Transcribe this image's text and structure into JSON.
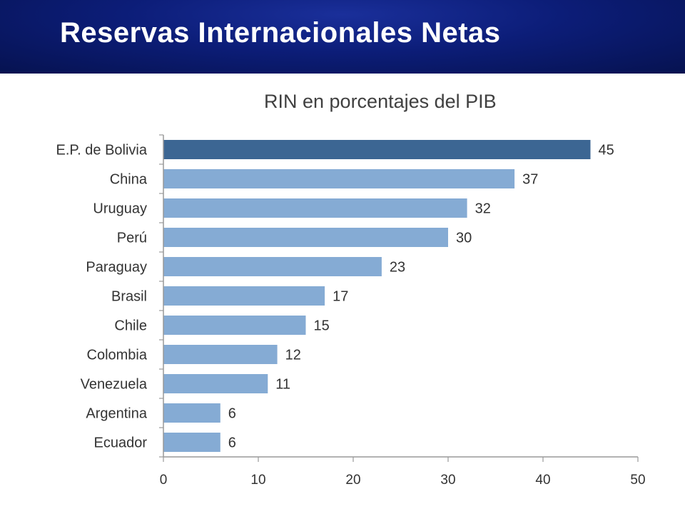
{
  "header": {
    "title": "Reservas Internacionales Netas"
  },
  "chart_data": {
    "type": "bar",
    "orientation": "horizontal",
    "title": "RIN en porcentajes del PIB",
    "categories": [
      "E.P. de Bolivia",
      "China",
      "Uruguay",
      "Perú",
      "Paraguay",
      "Brasil",
      "Chile",
      "Colombia",
      "Venezuela",
      "Argentina",
      "Ecuador"
    ],
    "values": [
      45,
      37,
      32,
      30,
      23,
      17,
      15,
      12,
      11,
      6,
      6
    ],
    "value_labels": [
      "45",
      "37",
      "32",
      "30",
      "23",
      "17",
      "15",
      "12",
      "11",
      "6",
      "6"
    ],
    "xlim": [
      0,
      50
    ],
    "xticks": [
      "0",
      "10",
      "20",
      "30",
      "40",
      "50"
    ],
    "highlight_index": 0,
    "colors": {
      "highlight": "#3c6693",
      "bar": "#85abd4",
      "axis": "#999999",
      "label": "#333333",
      "header_bg": "#0c1d78"
    },
    "grid": false
  }
}
